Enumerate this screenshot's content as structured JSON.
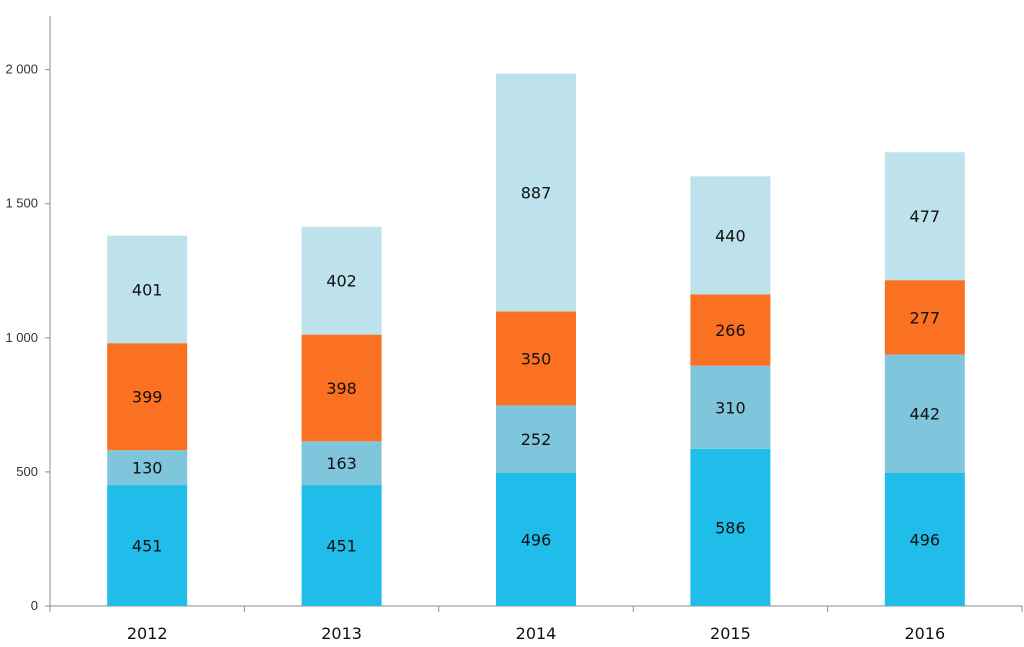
{
  "chart_data": {
    "type": "bar",
    "stacked": true,
    "categories": [
      "2012",
      "2013",
      "2014",
      "2015",
      "2016"
    ],
    "series": [
      {
        "color": "#21BDEA",
        "values": [
          451,
          451,
          496,
          586,
          496
        ],
        "labels": [
          "451",
          "451",
          "496",
          "586",
          "496"
        ]
      },
      {
        "color": "#7FC5DC",
        "values": [
          130,
          163,
          252,
          310,
          442
        ],
        "labels": [
          "130",
          "163",
          "252",
          "310",
          "442"
        ]
      },
      {
        "color": "#F97121",
        "values": [
          399,
          398,
          350,
          266,
          277
        ],
        "labels": [
          "399",
          "398",
          "350",
          "266",
          "277"
        ]
      },
      {
        "color": "#BDE2EC",
        "values": [
          401,
          402,
          887,
          440,
          477
        ],
        "labels": [
          "401",
          "402",
          "887",
          "440",
          "477"
        ]
      }
    ],
    "yticks": [
      0,
      500,
      1000,
      1500,
      2000
    ],
    "ytick_labels": [
      "0",
      "500",
      "1 000",
      "1 500",
      "2 000"
    ],
    "ylim": [
      0,
      2200
    ],
    "title": "",
    "xlabel": "",
    "ylabel": "",
    "grid": false,
    "legend": "none"
  }
}
